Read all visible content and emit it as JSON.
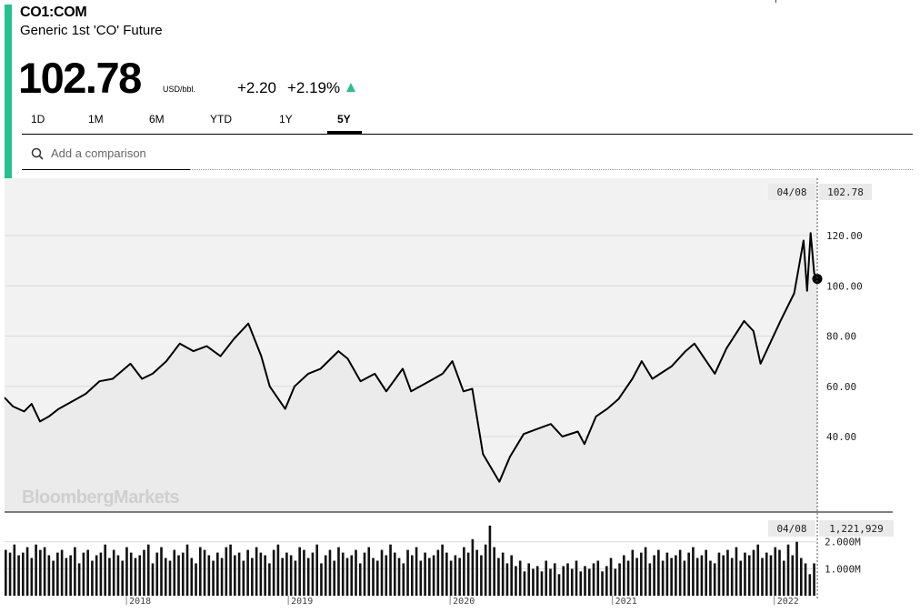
{
  "header": {
    "ticker": "CO1:COM",
    "name": "Generic 1st 'CO' Future",
    "price": "102.78",
    "unit": "USD/bbl.",
    "change": "+2.20",
    "change_pct": "+2.19%",
    "direction_icon": "up-arrow-icon",
    "accent_color": "#25c28f"
  },
  "tabs": [
    {
      "label": "1D",
      "active": false
    },
    {
      "label": "1M",
      "active": false
    },
    {
      "label": "6M",
      "active": false
    },
    {
      "label": "YTD",
      "active": false
    },
    {
      "label": "1Y",
      "active": false
    },
    {
      "label": "5Y",
      "active": true
    }
  ],
  "comparison": {
    "placeholder": "Add a comparison",
    "icon": "search-icon"
  },
  "watermark": "BloombergMarkets",
  "chart_data": {
    "type": "line",
    "price": {
      "ylim": [
        20,
        130
      ],
      "yticks": [
        40,
        60,
        80,
        100,
        120
      ],
      "ytick_labels": [
        "40.00",
        "60.00",
        "80.00",
        "100.00",
        "120.00"
      ],
      "grid": true,
      "x_labels": [
        "2018",
        "2019",
        "2020",
        "2021",
        "2022"
      ],
      "last": {
        "date_label": "04/08",
        "value_label": "102.78",
        "value": 102.78
      },
      "series": [
        [
          "2017-04-01",
          55.5
        ],
        [
          "2017-04-20",
          52
        ],
        [
          "2017-05-15",
          50
        ],
        [
          "2017-06-01",
          53
        ],
        [
          "2017-06-20",
          46
        ],
        [
          "2017-07-10",
          48
        ],
        [
          "2017-08-01",
          51
        ],
        [
          "2017-09-01",
          54
        ],
        [
          "2017-10-01",
          57
        ],
        [
          "2017-11-01",
          62
        ],
        [
          "2017-12-01",
          63
        ],
        [
          "2018-01-10",
          69
        ],
        [
          "2018-02-05",
          63
        ],
        [
          "2018-03-01",
          65
        ],
        [
          "2018-04-01",
          70
        ],
        [
          "2018-05-01",
          77
        ],
        [
          "2018-06-01",
          74
        ],
        [
          "2018-07-01",
          76
        ],
        [
          "2018-08-01",
          72
        ],
        [
          "2018-09-01",
          79
        ],
        [
          "2018-10-03",
          85
        ],
        [
          "2018-11-01",
          72
        ],
        [
          "2018-11-20",
          60
        ],
        [
          "2018-12-25",
          51
        ],
        [
          "2019-01-15",
          60
        ],
        [
          "2019-02-15",
          65
        ],
        [
          "2019-03-15",
          67
        ],
        [
          "2019-04-24",
          74
        ],
        [
          "2019-05-15",
          71
        ],
        [
          "2019-06-13",
          62
        ],
        [
          "2019-07-15",
          65
        ],
        [
          "2019-08-10",
          58
        ],
        [
          "2019-09-16",
          67
        ],
        [
          "2019-10-05",
          58
        ],
        [
          "2019-11-15",
          62
        ],
        [
          "2019-12-15",
          65
        ],
        [
          "2020-01-06",
          70
        ],
        [
          "2020-01-31",
          58
        ],
        [
          "2020-02-20",
          59
        ],
        [
          "2020-03-15",
          33
        ],
        [
          "2020-04-21",
          22
        ],
        [
          "2020-05-15",
          32
        ],
        [
          "2020-06-15",
          41
        ],
        [
          "2020-07-15",
          43
        ],
        [
          "2020-08-15",
          45
        ],
        [
          "2020-09-10",
          40
        ],
        [
          "2020-10-15",
          42
        ],
        [
          "2020-10-30",
          37
        ],
        [
          "2020-11-25",
          48
        ],
        [
          "2020-12-20",
          51
        ],
        [
          "2021-01-15",
          55
        ],
        [
          "2021-02-15",
          63
        ],
        [
          "2021-03-08",
          70
        ],
        [
          "2021-04-01",
          63
        ],
        [
          "2021-05-15",
          68
        ],
        [
          "2021-06-15",
          74
        ],
        [
          "2021-07-05",
          77
        ],
        [
          "2021-08-20",
          65
        ],
        [
          "2021-09-15",
          75
        ],
        [
          "2021-10-25",
          86
        ],
        [
          "2021-11-15",
          82
        ],
        [
          "2021-12-01",
          69
        ],
        [
          "2022-01-15",
          86
        ],
        [
          "2022-02-15",
          97
        ],
        [
          "2022-03-08",
          118
        ],
        [
          "2022-03-16",
          98
        ],
        [
          "2022-03-24",
          121
        ],
        [
          "2022-04-01",
          105
        ],
        [
          "2022-04-08",
          102.78
        ]
      ]
    },
    "volume": {
      "ylim": [
        0,
        2800000
      ],
      "yticks": [
        1000000,
        2000000
      ],
      "ytick_labels": [
        "1.000M",
        "2.000M"
      ],
      "last": {
        "date_label": "04/08",
        "value_label": "1,221,929",
        "value": 1221929
      },
      "values": [
        1.7,
        1.6,
        1.9,
        1.5,
        1.6,
        1.8,
        1.4,
        1.9,
        1.7,
        1.8,
        1.5,
        1.3,
        1.6,
        1.7,
        1.4,
        1.5,
        1.8,
        1.2,
        1.6,
        1.7,
        1.3,
        1.5,
        1.6,
        1.9,
        1.4,
        1.7,
        1.5,
        1.3,
        1.8,
        1.6,
        1.4,
        1.5,
        1.7,
        1.9,
        1.2,
        1.6,
        1.8,
        1.4,
        1.3,
        1.7,
        1.5,
        1.6,
        1.9,
        1.4,
        1.2,
        1.8,
        1.7,
        1.5,
        1.3,
        1.6,
        1.4,
        1.8,
        1.9,
        1.5,
        1.6,
        1.3,
        1.7,
        1.4,
        1.8,
        1.6,
        1.5,
        1.2,
        1.7,
        1.9,
        1.4,
        1.6,
        1.5,
        1.3,
        1.8,
        1.7,
        1.4,
        1.6,
        1.9,
        1.2,
        1.5,
        1.7,
        1.3,
        1.8,
        1.6,
        1.4,
        1.5,
        1.7,
        1.2,
        1.6,
        1.8,
        1.4,
        1.3,
        1.7,
        1.5,
        1.9,
        1.6,
        1.4,
        1.2,
        1.7,
        1.5,
        1.8,
        1.3,
        1.6,
        1.4,
        1.5,
        1.7,
        1.9,
        1.6,
        1.3,
        1.5,
        1.4,
        1.8,
        1.6,
        2.1,
        1.7,
        1.5,
        1.9,
        2.6,
        1.8,
        1.4,
        1.6,
        1.2,
        1.5,
        1.1,
        1.3,
        0.9,
        1.2,
        1.0,
        1.1,
        0.9,
        1.3,
        1.0,
        1.2,
        0.8,
        1.1,
        1.2,
        1.0,
        1.3,
        0.9,
        1.1,
        1.0,
        1.2,
        1.3,
        0.9,
        1.1,
        1.4,
        1.0,
        1.2,
        1.5,
        1.3,
        1.7,
        1.4,
        1.6,
        1.8,
        1.2,
        1.5,
        1.7,
        1.3,
        1.6,
        1.4,
        1.5,
        1.7,
        1.3,
        1.6,
        1.8,
        1.4,
        1.5,
        1.7,
        1.3,
        1.2,
        1.6,
        1.5,
        1.7,
        1.4,
        1.8,
        1.3,
        1.6,
        1.5,
        1.7,
        1.9,
        1.4,
        1.6,
        1.5,
        1.8,
        1.7,
        1.3,
        1.9,
        1.5,
        2.0,
        1.4,
        1.2,
        0.8,
        1.2
      ]
    }
  }
}
